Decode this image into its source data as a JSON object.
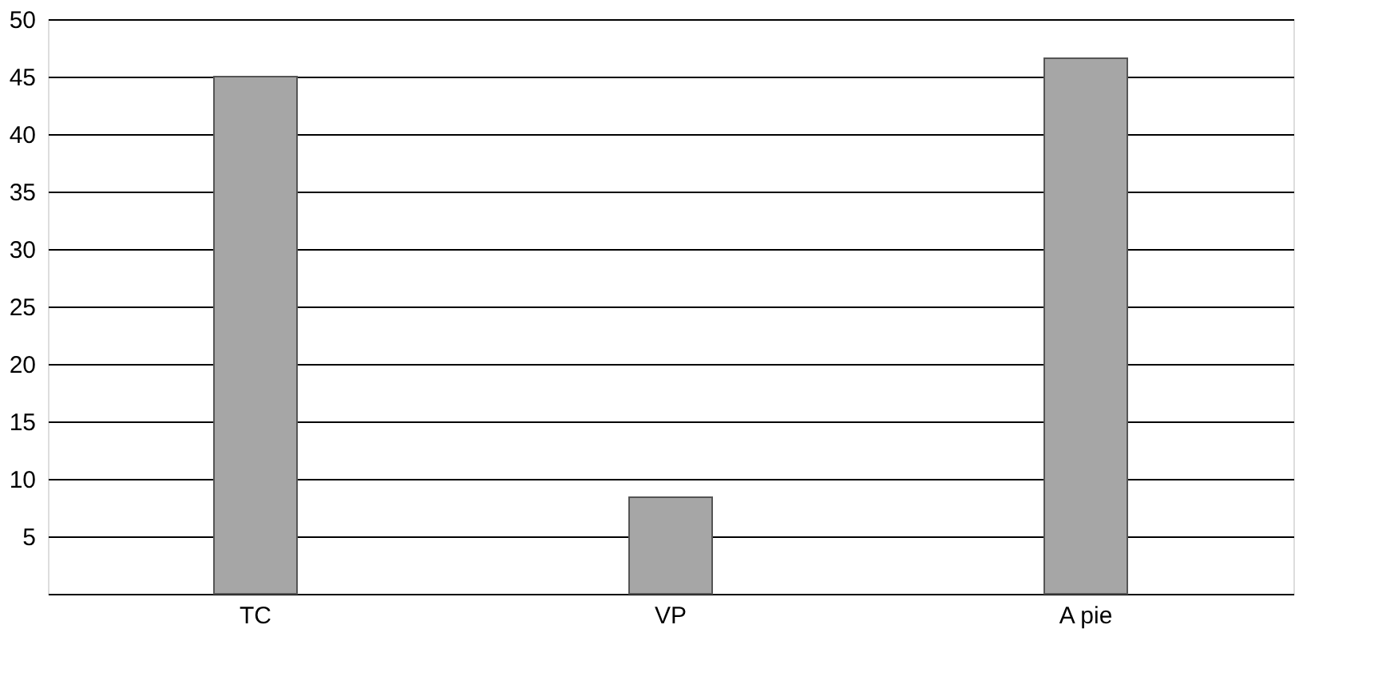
{
  "chart_data": {
    "type": "bar",
    "categories": [
      "TC",
      "VP",
      "A pie"
    ],
    "values": [
      45,
      8.4,
      46.6
    ],
    "color": "#a6a6a6",
    "ylim": [
      0,
      50
    ],
    "yticks": [
      5,
      10,
      15,
      20,
      25,
      30,
      35,
      40,
      45,
      50
    ],
    "grid": "y"
  }
}
